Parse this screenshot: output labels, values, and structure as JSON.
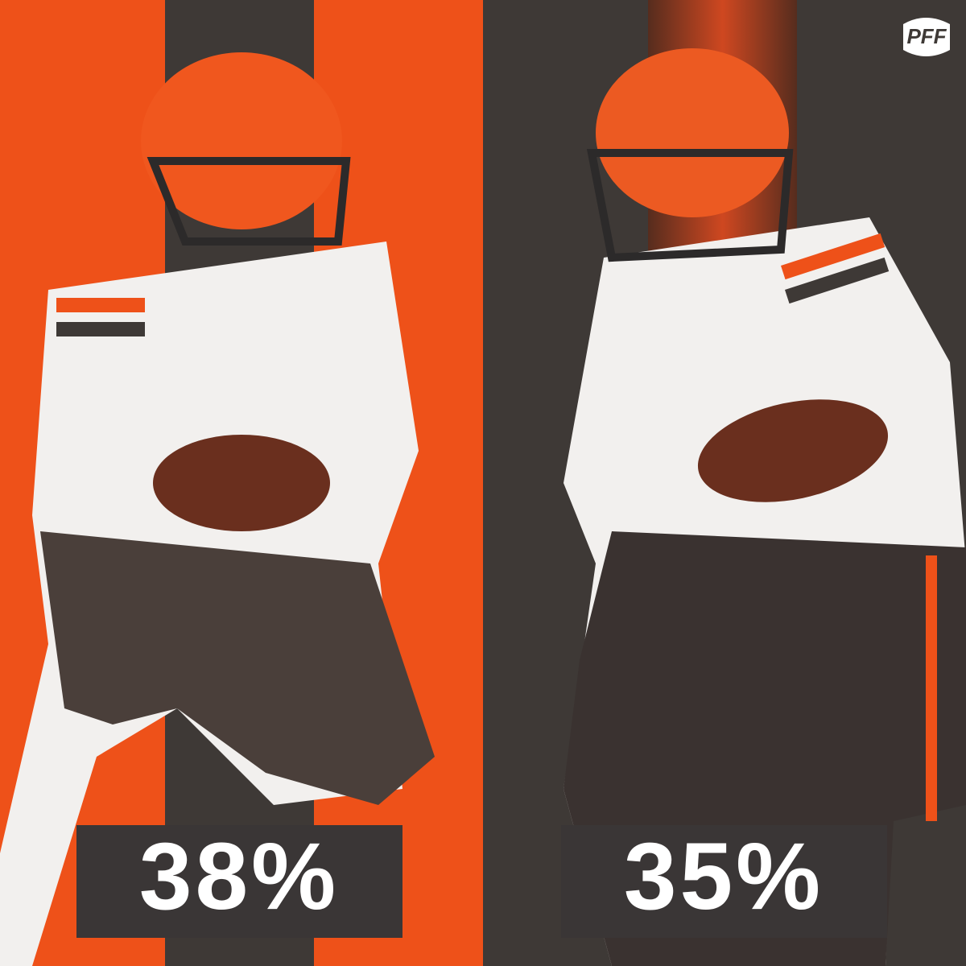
{
  "logo": "PFF",
  "panels": [
    {
      "label": "38%"
    },
    {
      "label": "35%"
    }
  ]
}
